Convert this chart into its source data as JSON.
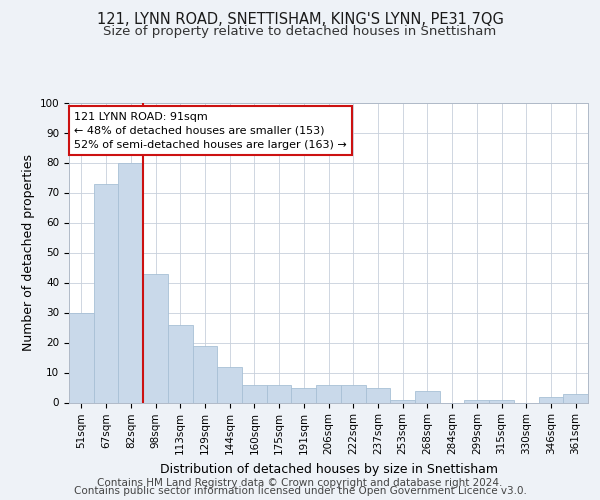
{
  "title": "121, LYNN ROAD, SNETTISHAM, KING'S LYNN, PE31 7QG",
  "subtitle": "Size of property relative to detached houses in Snettisham",
  "xlabel": "Distribution of detached houses by size in Snettisham",
  "ylabel": "Number of detached properties",
  "footer_line1": "Contains HM Land Registry data © Crown copyright and database right 2024.",
  "footer_line2": "Contains public sector information licensed under the Open Government Licence v3.0.",
  "categories": [
    "51sqm",
    "67sqm",
    "82sqm",
    "98sqm",
    "113sqm",
    "129sqm",
    "144sqm",
    "160sqm",
    "175sqm",
    "191sqm",
    "206sqm",
    "222sqm",
    "237sqm",
    "253sqm",
    "268sqm",
    "284sqm",
    "299sqm",
    "315sqm",
    "330sqm",
    "346sqm",
    "361sqm"
  ],
  "values": [
    30,
    73,
    80,
    43,
    26,
    19,
    12,
    6,
    6,
    5,
    6,
    6,
    5,
    1,
    4,
    0,
    1,
    1,
    0,
    2,
    3
  ],
  "bar_color": "#c9d9ea",
  "bar_edge_color": "#a8c0d6",
  "annotation_text_line1": "121 LYNN ROAD: 91sqm",
  "annotation_text_line2": "← 48% of detached houses are smaller (153)",
  "annotation_text_line3": "52% of semi-detached houses are larger (163) →",
  "vline_bar_index": 2,
  "ylim": [
    0,
    100
  ],
  "yticks": [
    0,
    10,
    20,
    30,
    40,
    50,
    60,
    70,
    80,
    90,
    100
  ],
  "bg_color": "#eef2f7",
  "plot_bg_color": "#ffffff",
  "grid_color": "#c8d0dc",
  "title_fontsize": 10.5,
  "subtitle_fontsize": 9.5,
  "label_fontsize": 9,
  "tick_fontsize": 7.5,
  "annotation_fontsize": 8,
  "footer_fontsize": 7.5
}
